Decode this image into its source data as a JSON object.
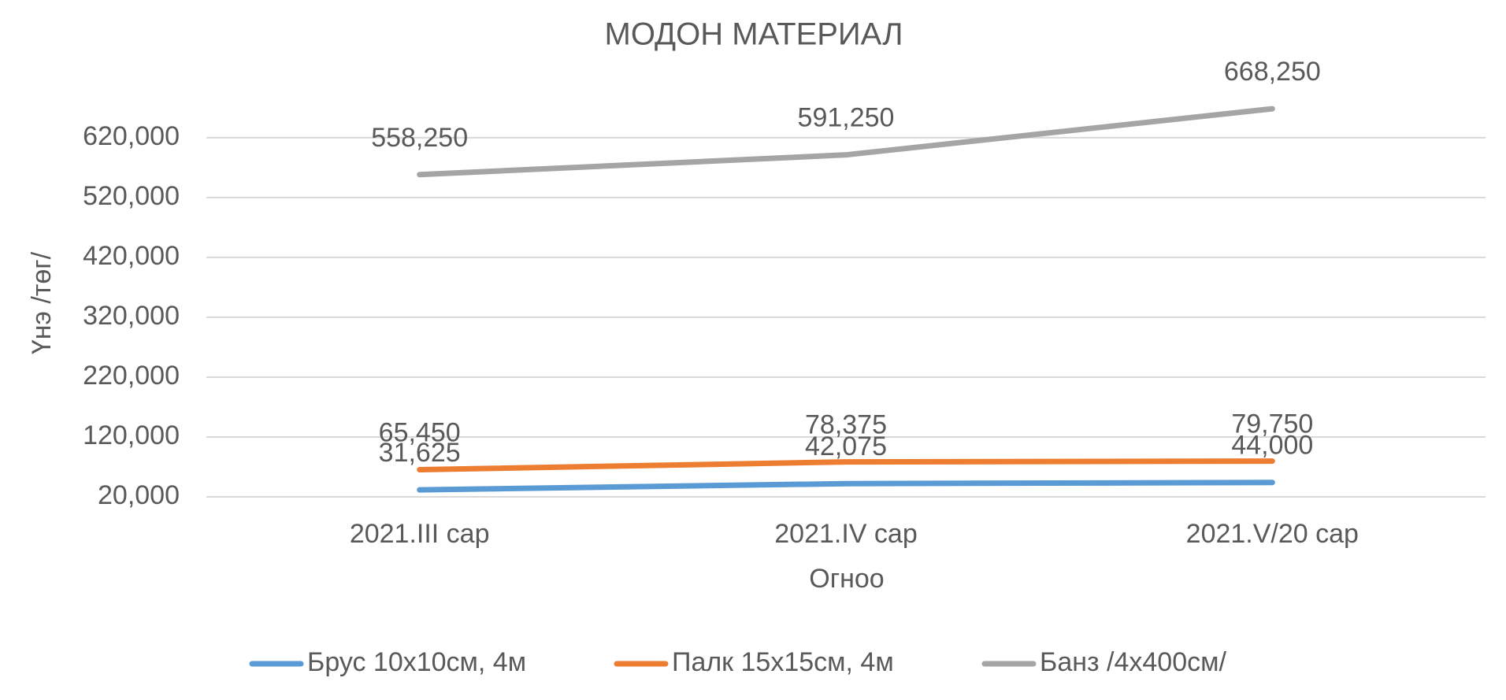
{
  "chart_data": {
    "type": "line",
    "title": "МОДОН МАТЕРИАЛ",
    "x_label": "Огноо",
    "y_label": "Үнэ /төг/",
    "categories": [
      "2021.III сар",
      "2021.IV сар",
      "2021.V/20 сар"
    ],
    "series": [
      {
        "name": "Брус 10х10см, 4м",
        "color": "#5b9bd5",
        "values": [
          31625,
          42075,
          44000
        ],
        "value_labels": [
          "31,625",
          "42,075",
          "44,000"
        ]
      },
      {
        "name": "Палк 15х15см, 4м",
        "color": "#ed7d31",
        "values": [
          65450,
          78375,
          79750
        ],
        "value_labels": [
          "65,450",
          "78,375",
          "79,750"
        ]
      },
      {
        "name": "Банз /4х400см/",
        "color": "#a5a5a5",
        "values": [
          558250,
          591250,
          668250
        ],
        "value_labels": [
          "558,250",
          "591,250",
          "668,250"
        ]
      }
    ],
    "ylim": [
      20000,
      700000
    ],
    "yticks": [
      {
        "value": 20000,
        "label": "20,000"
      },
      {
        "value": 120000,
        "label": "120,000"
      },
      {
        "value": 220000,
        "label": "220,000"
      },
      {
        "value": 320000,
        "label": "320,000"
      },
      {
        "value": 420000,
        "label": "420,000"
      },
      {
        "value": 520000,
        "label": "520,000"
      },
      {
        "value": 620000,
        "label": "620,000"
      }
    ],
    "grid": true,
    "legend": "bottom"
  }
}
